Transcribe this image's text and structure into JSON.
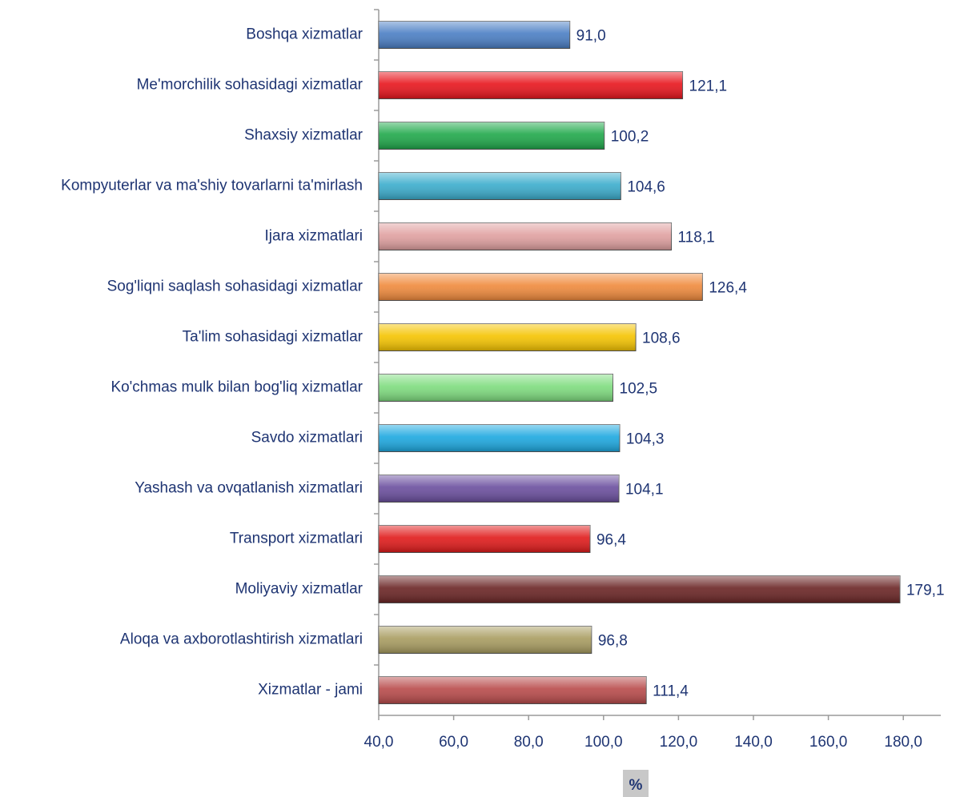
{
  "chart_data": {
    "type": "barh",
    "categories": [
      "Boshqa xizmatlar",
      "Me'morchilik  sohasidagi xizmatlar",
      "Shaxsiy xizmatlar",
      "Kompyuterlar va ma'shiy tovarlarni ta'mirlash",
      "Ijara xizmatlari",
      "Sog'liqni saqlash sohasidagi xizmatlar",
      "Ta'lim sohasidagi xizmatlar",
      "Ko'chmas mulk bilan bog'liq xizmatlar",
      "Savdo xizmatlari ",
      "Yashash va ovqatlanish xizmatlari",
      "Transport xizmatlari",
      "Moliyaviy xizmatlar ",
      "Aloqa va axborotlashtirish xizmatlari ",
      "Xizmatlar - jami"
    ],
    "values": [
      91.0,
      121.1,
      100.2,
      104.6,
      118.1,
      126.4,
      108.6,
      102.5,
      104.3,
      104.1,
      96.4,
      179.1,
      96.8,
      111.4
    ],
    "value_labels": [
      "91,0",
      "121,1",
      "100,2",
      "104,6",
      "118,1",
      "126,4",
      "108,6",
      "102,5",
      "104,3",
      "104,1",
      "96,4",
      "179,1",
      "96,8",
      "111,4"
    ],
    "colors": [
      "#4a7ec4",
      "#e8141c",
      "#1fa84a",
      "#3aaccc",
      "#e0a0a0",
      "#f08a3c",
      "#f5c400",
      "#7edc7e",
      "#1ca8e0",
      "#6a4e9e",
      "#e01a1a",
      "#6a2424",
      "#a89c60",
      "#b84a4a"
    ],
    "xlabel": "%",
    "xlim": [
      40,
      190
    ],
    "xticks": [
      {
        "value": 40,
        "label": "40,0"
      },
      {
        "value": 60,
        "label": "60,0"
      },
      {
        "value": 80,
        "label": "80,0"
      },
      {
        "value": 100,
        "label": "100,0"
      },
      {
        "value": 120,
        "label": "120,0"
      },
      {
        "value": 140,
        "label": "140,0"
      },
      {
        "value": 160,
        "label": "160,0"
      },
      {
        "value": 180,
        "label": "180,0"
      }
    ]
  }
}
